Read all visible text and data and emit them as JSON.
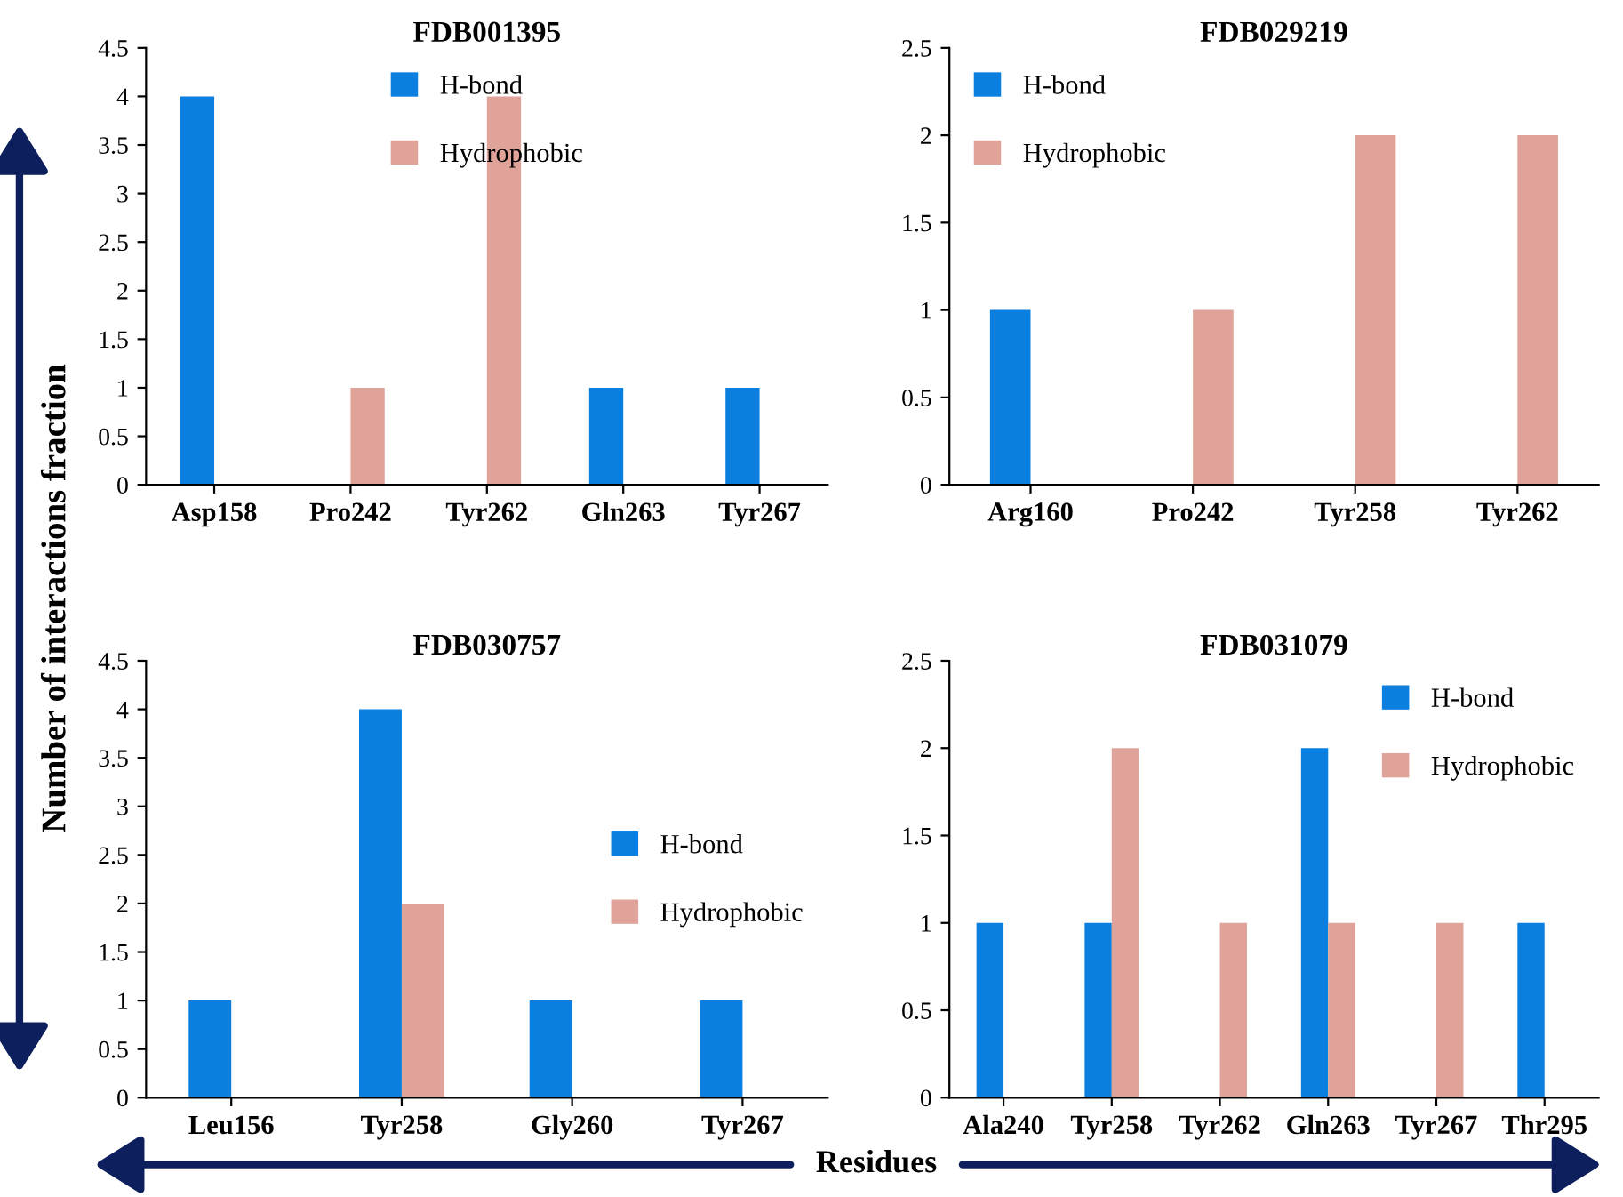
{
  "chart_data": [
    {
      "type": "bar",
      "title": "FDB001395",
      "ylabel": "Number of interactions fraction",
      "categories": [
        "Asp158",
        "Pro242",
        "Tyr262",
        "Gln263",
        "Tyr267"
      ],
      "series": [
        {
          "name": "H-bond",
          "color": "#0a7fe0",
          "values": [
            4,
            0,
            0,
            1,
            1
          ]
        },
        {
          "name": "Hydrophobic",
          "color": "#e0a39a",
          "values": [
            0,
            1,
            4,
            0,
            0
          ]
        }
      ],
      "ylim": [
        0,
        4.5
      ],
      "yticks": [
        0,
        0.5,
        1,
        1.5,
        2,
        2.5,
        3,
        3.5,
        4,
        4.5
      ],
      "legend": "top",
      "grid": false
    },
    {
      "type": "bar",
      "title": "FDB029219",
      "categories": [
        "Arg160",
        "Pro242",
        "Tyr258",
        "Tyr262"
      ],
      "series": [
        {
          "name": "H-bond",
          "color": "#0a7fe0",
          "values": [
            1,
            0,
            0,
            0
          ]
        },
        {
          "name": "Hydrophobic",
          "color": "#e0a39a",
          "values": [
            0,
            1,
            2,
            2
          ]
        }
      ],
      "ylim": [
        0,
        2.5
      ],
      "yticks": [
        0,
        0.5,
        1,
        1.5,
        2,
        2.5
      ],
      "legend": "top left",
      "grid": false
    },
    {
      "type": "bar",
      "title": "FDB030757",
      "xlabel": "Residues",
      "categories": [
        "Leu156",
        "Tyr258",
        "Gly260",
        "Tyr267"
      ],
      "series": [
        {
          "name": "H-bond",
          "color": "#0a7fe0",
          "values": [
            1,
            4,
            1,
            1
          ]
        },
        {
          "name": "Hydrophobic",
          "color": "#e0a39a",
          "values": [
            0,
            2,
            0,
            0
          ]
        }
      ],
      "ylim": [
        0,
        4.5
      ],
      "yticks": [
        0,
        0.5,
        1,
        1.5,
        2,
        2.5,
        3,
        3.5,
        4,
        4.5
      ],
      "legend": "right",
      "grid": false
    },
    {
      "type": "bar",
      "title": "FDB031079",
      "categories": [
        "Ala240",
        "Tyr258",
        "Tyr262",
        "Gln263",
        "Tyr267",
        "Thr295"
      ],
      "series": [
        {
          "name": "H-bond",
          "color": "#0a7fe0",
          "values": [
            1,
            1,
            0,
            2,
            0,
            1
          ]
        },
        {
          "name": "Hydrophobic",
          "color": "#e0a39a",
          "values": [
            0,
            2,
            1,
            1,
            1,
            0
          ]
        }
      ],
      "ylim": [
        0,
        2.5
      ],
      "yticks": [
        0,
        0.5,
        1,
        1.5,
        2,
        2.5
      ],
      "legend": "top right",
      "grid": false
    }
  ]
}
